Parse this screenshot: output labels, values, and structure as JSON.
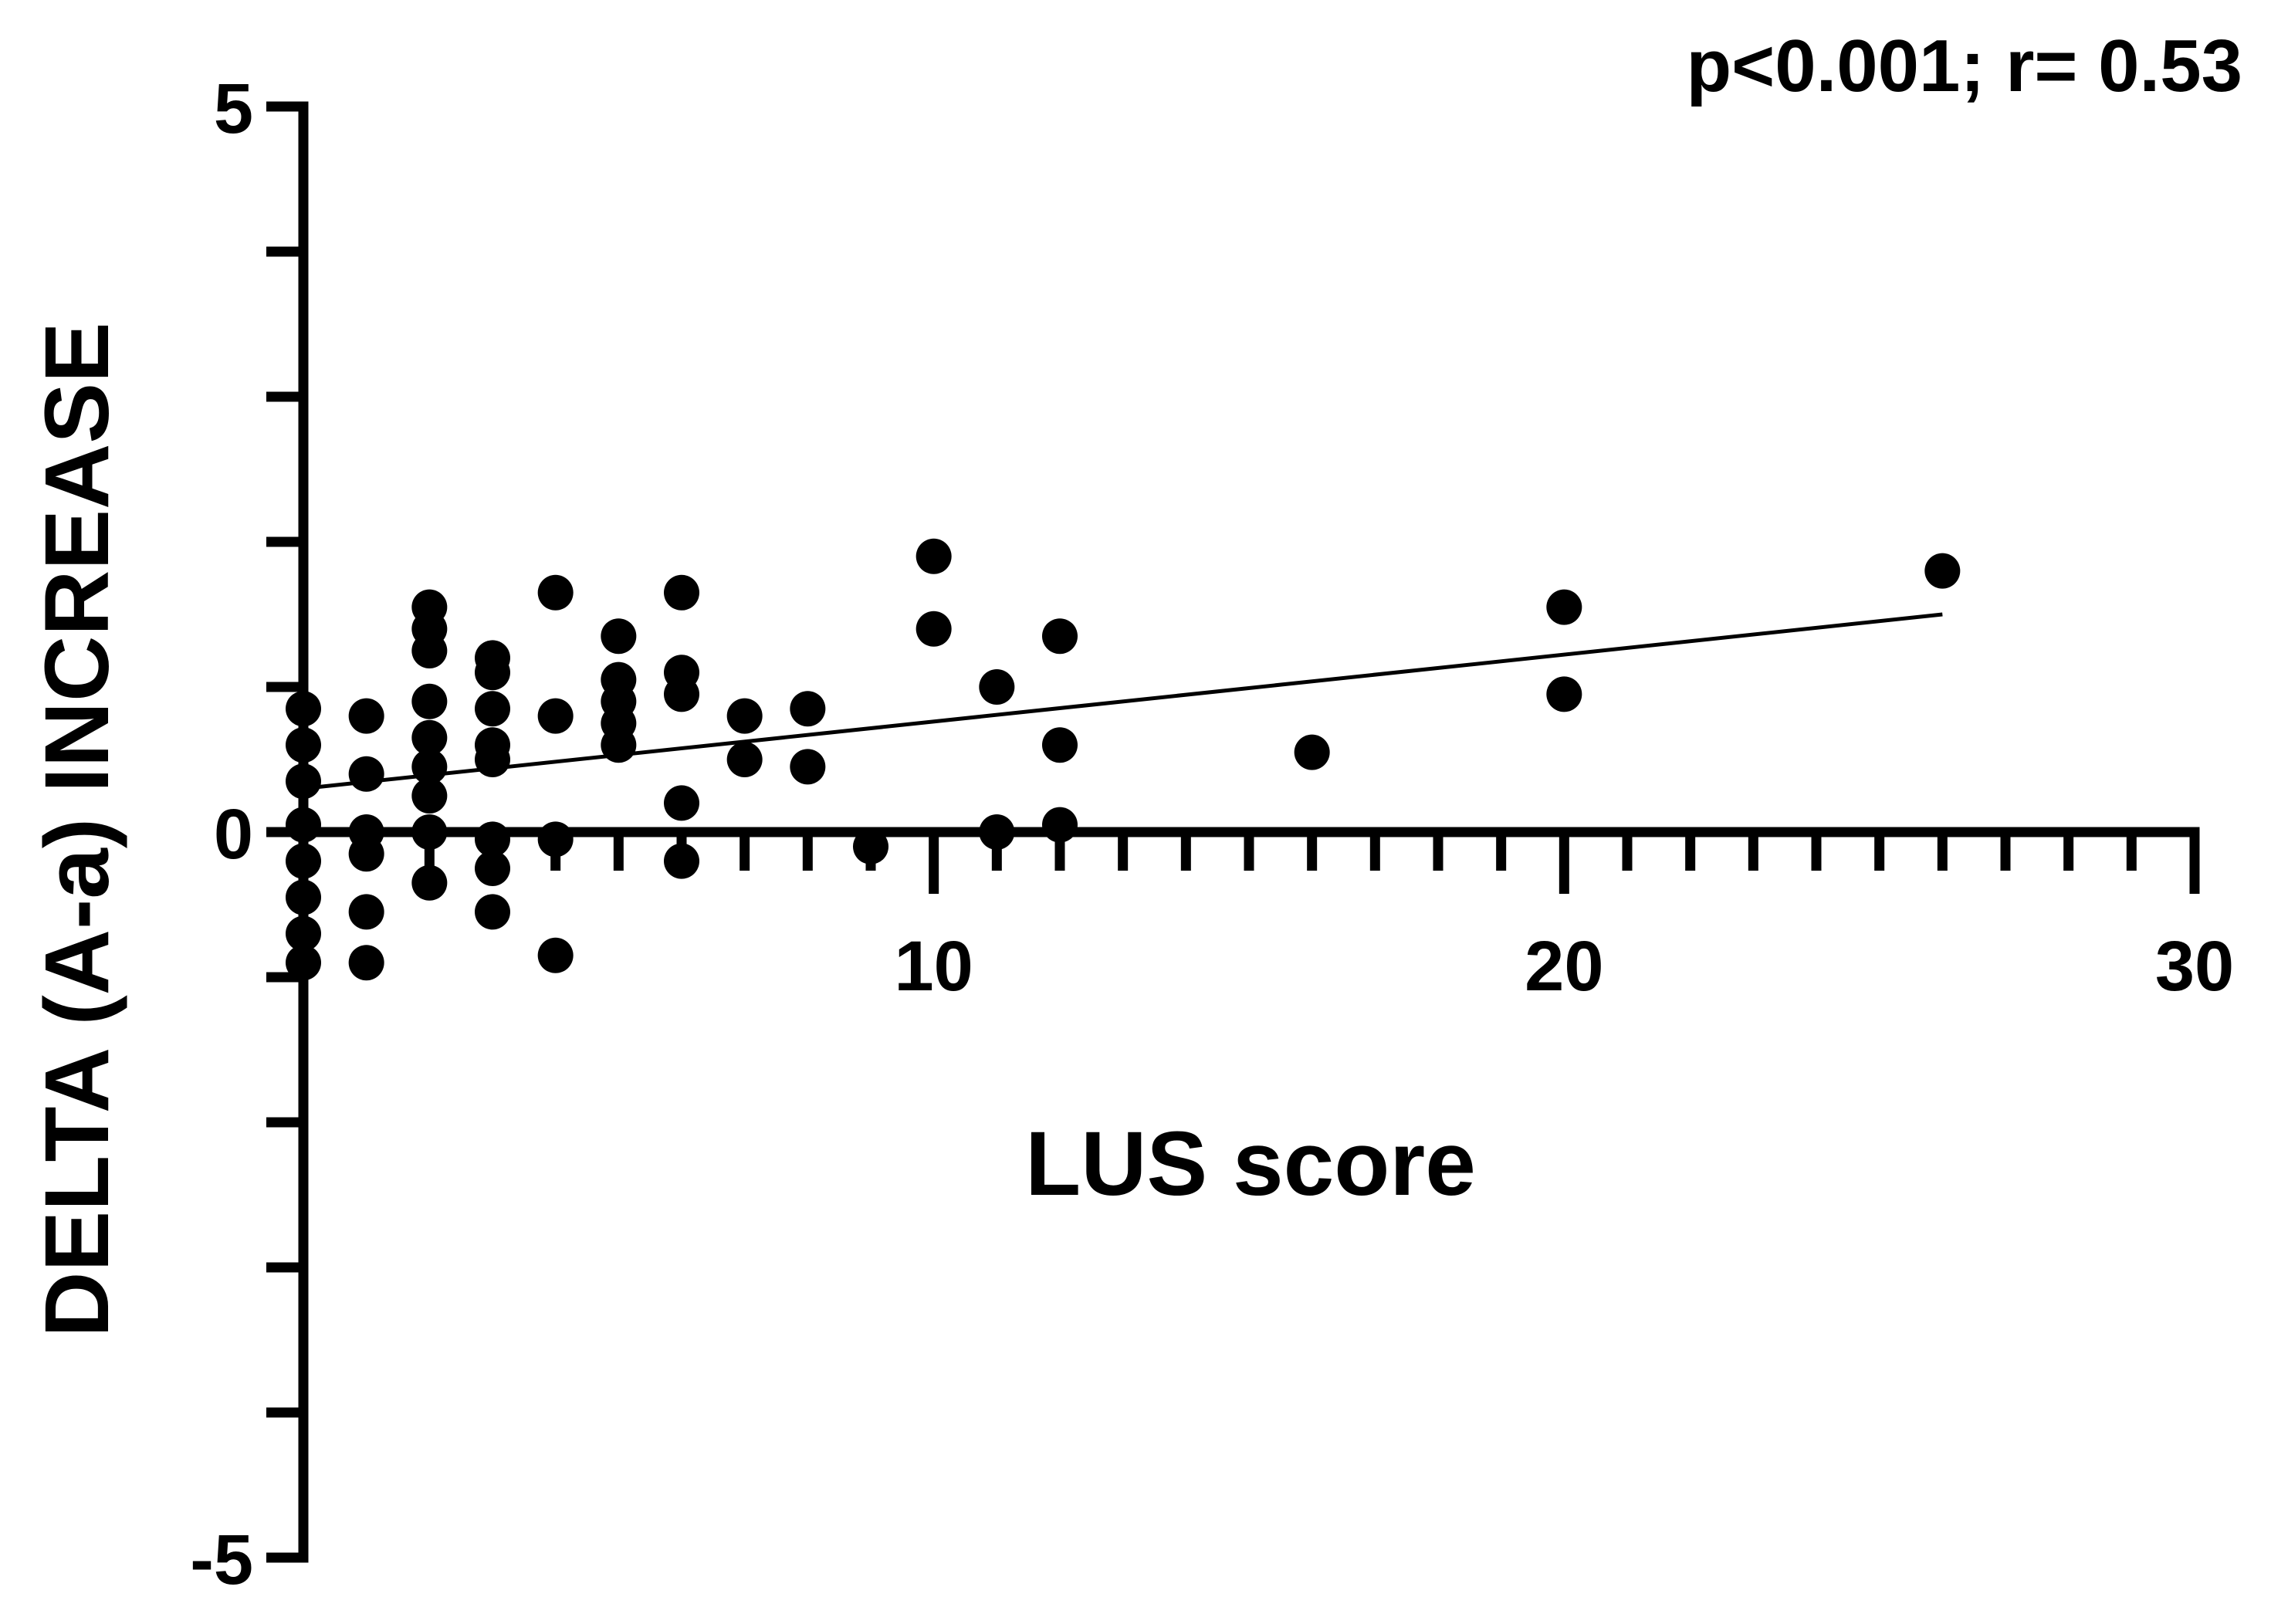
{
  "chart_data": {
    "type": "scatter",
    "title": "",
    "annotation": "p<0.001; r= 0.53",
    "xlabel": "LUS score",
    "ylabel": "DELTA (A-a) INCREASE",
    "xlim": [
      0,
      30
    ],
    "ylim": [
      -5,
      5
    ],
    "x_ticks_labeled": [
      10,
      20,
      30
    ],
    "y_ticks_labeled": [
      5,
      0,
      -5
    ],
    "x_minor_tick_step": 1,
    "y_minor_tick_step": 1,
    "grid": false,
    "legend": "none",
    "marker_color": "#000000",
    "regression_line": {
      "x": [
        0,
        26
      ],
      "y": [
        0.3,
        1.5
      ]
    },
    "points": [
      {
        "x": 0,
        "y": 0.85
      },
      {
        "x": 0,
        "y": 0.6
      },
      {
        "x": 0,
        "y": 0.35
      },
      {
        "x": 0,
        "y": 0.05
      },
      {
        "x": 0,
        "y": -0.2
      },
      {
        "x": 0,
        "y": -0.45
      },
      {
        "x": 0,
        "y": -0.7
      },
      {
        "x": 0,
        "y": -0.9
      },
      {
        "x": 1,
        "y": 0.8
      },
      {
        "x": 1,
        "y": 0.4
      },
      {
        "x": 1,
        "y": 0.0
      },
      {
        "x": 1,
        "y": -0.15
      },
      {
        "x": 1,
        "y": -0.55
      },
      {
        "x": 1,
        "y": -0.9
      },
      {
        "x": 2,
        "y": 1.55
      },
      {
        "x": 2,
        "y": 1.4
      },
      {
        "x": 2,
        "y": 1.25
      },
      {
        "x": 2,
        "y": 0.9
      },
      {
        "x": 2,
        "y": 0.65
      },
      {
        "x": 2,
        "y": 0.45
      },
      {
        "x": 2,
        "y": 0.25
      },
      {
        "x": 2,
        "y": 0.0
      },
      {
        "x": 2,
        "y": -0.35
      },
      {
        "x": 3,
        "y": 1.2
      },
      {
        "x": 3,
        "y": 1.1
      },
      {
        "x": 3,
        "y": 0.85
      },
      {
        "x": 3,
        "y": 0.6
      },
      {
        "x": 3,
        "y": 0.5
      },
      {
        "x": 3,
        "y": -0.05
      },
      {
        "x": 3,
        "y": -0.25
      },
      {
        "x": 3,
        "y": -0.55
      },
      {
        "x": 4,
        "y": 1.65
      },
      {
        "x": 4,
        "y": 0.8
      },
      {
        "x": 4,
        "y": -0.05
      },
      {
        "x": 4,
        "y": -0.85
      },
      {
        "x": 5,
        "y": 1.35
      },
      {
        "x": 5,
        "y": 1.05
      },
      {
        "x": 5,
        "y": 0.9
      },
      {
        "x": 5,
        "y": 0.75
      },
      {
        "x": 5,
        "y": 0.6
      },
      {
        "x": 6,
        "y": 1.65
      },
      {
        "x": 6,
        "y": 1.1
      },
      {
        "x": 6,
        "y": 0.95
      },
      {
        "x": 6,
        "y": 0.2
      },
      {
        "x": 6,
        "y": -0.2
      },
      {
        "x": 7,
        "y": 0.8
      },
      {
        "x": 7,
        "y": 0.5
      },
      {
        "x": 8,
        "y": 0.85
      },
      {
        "x": 8,
        "y": 0.45
      },
      {
        "x": 9,
        "y": -0.1
      },
      {
        "x": 10,
        "y": 1.9
      },
      {
        "x": 10,
        "y": 1.4
      },
      {
        "x": 11,
        "y": 1.0
      },
      {
        "x": 11,
        "y": 0.0
      },
      {
        "x": 12,
        "y": 1.35
      },
      {
        "x": 12,
        "y": 0.6
      },
      {
        "x": 12,
        "y": 0.05
      },
      {
        "x": 16,
        "y": 0.55
      },
      {
        "x": 20,
        "y": 1.55
      },
      {
        "x": 20,
        "y": 0.95
      },
      {
        "x": 26,
        "y": 1.8
      }
    ]
  }
}
